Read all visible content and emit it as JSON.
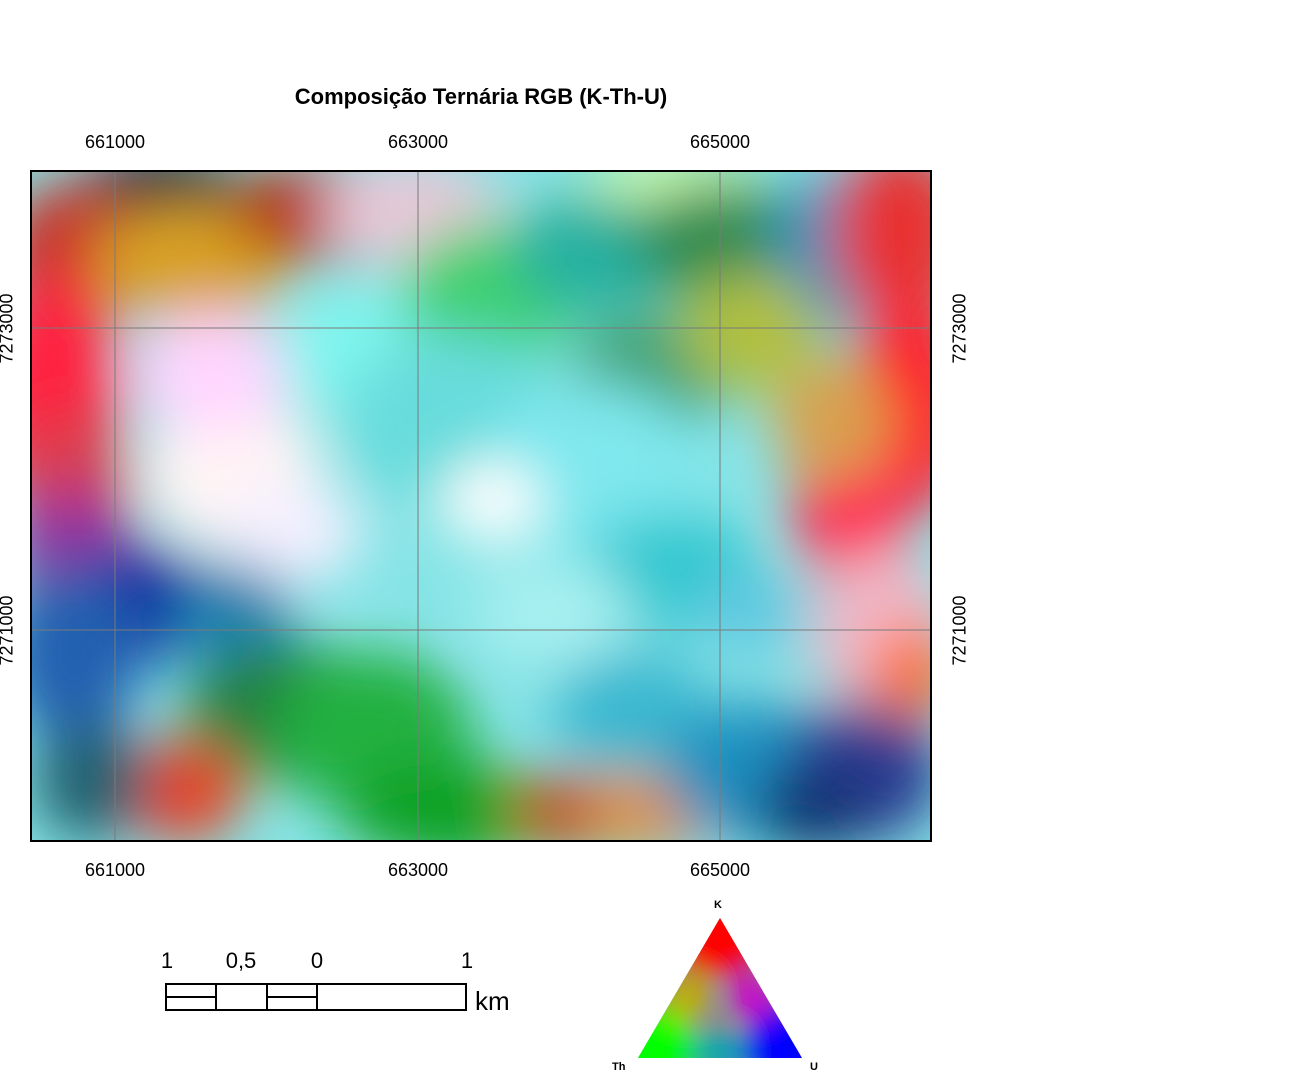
{
  "title": "Composição Ternária RGB (K-Th-U)",
  "map": {
    "x_ticks": [
      "661000",
      "663000",
      "665000"
    ],
    "y_ticks": [
      "7273000",
      "7271000"
    ]
  },
  "scale_bar": {
    "labels": [
      "1",
      "0,5",
      "0",
      "1"
    ],
    "unit": "km"
  },
  "ternary_legend": {
    "top_label": "K",
    "left_label": "Th",
    "right_label": "U",
    "colors": {
      "K": "#ff0000",
      "Th": "#00ff00",
      "U": "#0000ff"
    }
  },
  "icons": [
    "rgb-composite-raster",
    "scale-bar-icon",
    "ternary-triangle-icon"
  ]
}
